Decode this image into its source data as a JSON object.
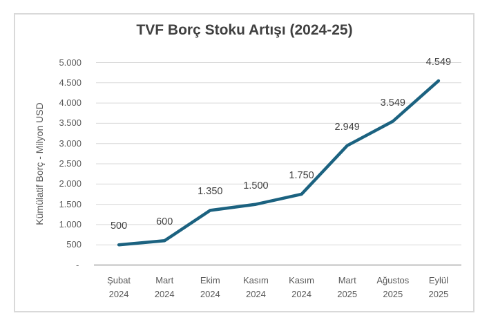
{
  "chart_data": {
    "type": "line",
    "title": "TVF Borç Stoku Artışı (2024-25)",
    "ylabel": "Kümülatif Borç - Milyon USD",
    "xlabel": "",
    "categories": [
      "Şubat 2024",
      "Mart 2024",
      "Ekim 2024",
      "Kasım 2024",
      "Kasım 2024",
      "Mart 2025",
      "Ağustos 2025",
      "Eylül 2025"
    ],
    "values": [
      500,
      600,
      1350,
      1500,
      1750,
      2949,
      3549,
      4549
    ],
    "data_labels": [
      "500",
      "600",
      "1.350",
      "1.500",
      "1.750",
      "2.949",
      "3.549",
      "4.549"
    ],
    "y_ticks": [
      "5.000",
      "4.500",
      "4.000",
      "3.500",
      "3.000",
      "2.500",
      "2.000",
      "1.500",
      "1.000",
      "500",
      "- "
    ],
    "ylim": [
      0,
      5000
    ],
    "y_step": 500,
    "grid": true,
    "legend": "none",
    "colors": {
      "line": "#1B6280",
      "title_text": "#404040",
      "data_label_text": "#404040",
      "axis_text": "#595959",
      "gridline": "#D9D9D9",
      "axis_line": "#BFBFBF",
      "frame_border": "#D9D9D9",
      "background": "#FFFFFF"
    }
  }
}
